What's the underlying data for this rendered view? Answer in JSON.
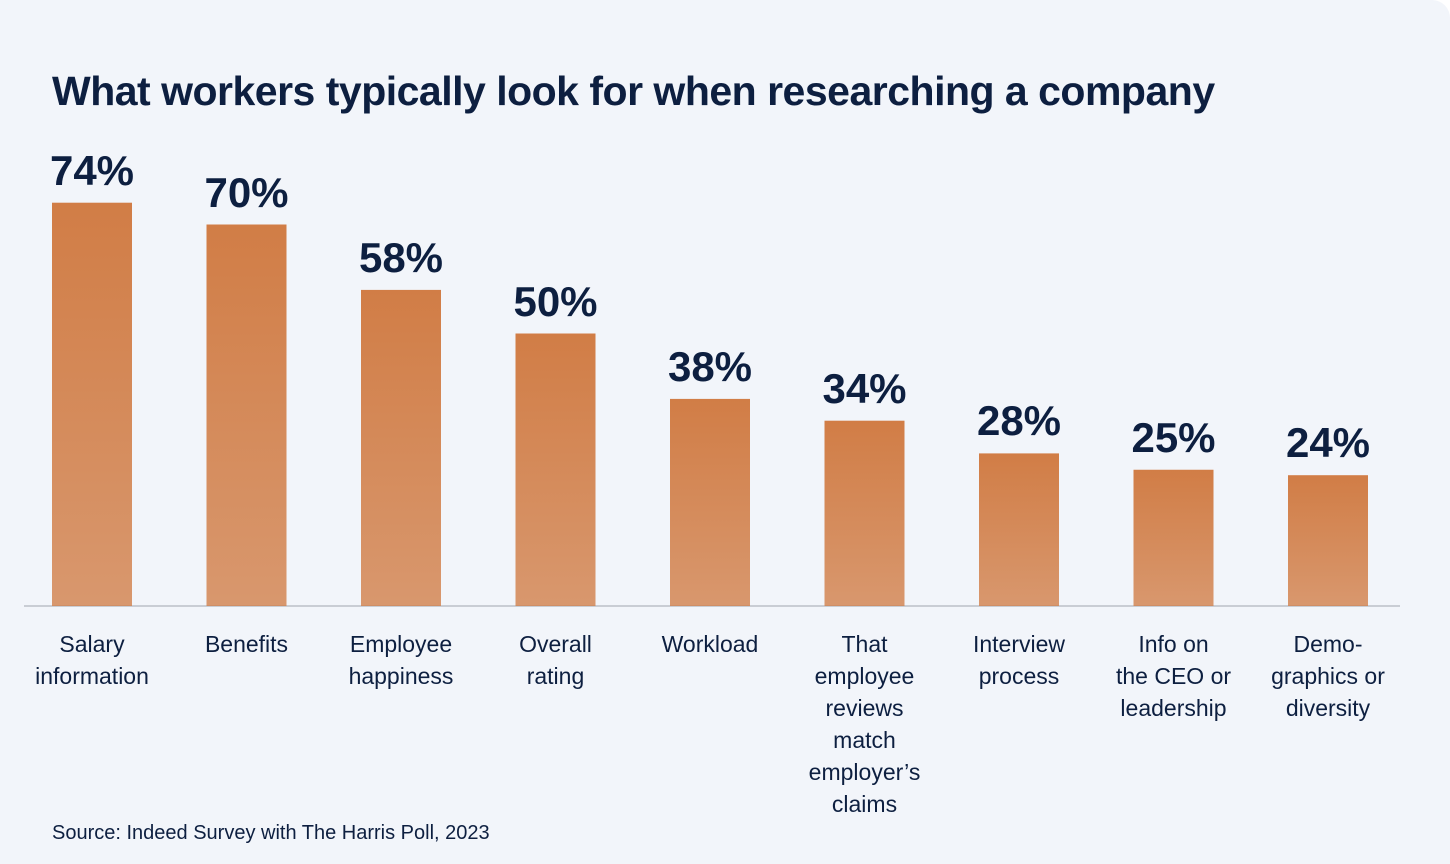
{
  "chart_data": {
    "type": "bar",
    "title": "What workers typically look for when researching a company",
    "categories": [
      "Salary\ninformation",
      "Benefits",
      "Employee\nhappiness",
      "Overall\nrating",
      "Workload",
      "That\nemployee\nreviews\nmatch\nemployer’s\nclaims",
      "Interview\nprocess",
      "Info on\nthe CEO or\nleadership",
      "Demo-\ngraphics or\ndiversity"
    ],
    "values": [
      74,
      70,
      58,
      50,
      38,
      34,
      28,
      25,
      24
    ],
    "value_labels": [
      "74%",
      "70%",
      "58%",
      "50%",
      "38%",
      "34%",
      "28%",
      "25%",
      "24%"
    ],
    "color": "#d17d46",
    "ylim": [
      0,
      100
    ],
    "source": "Source: Indeed Survey with The Harris Poll, 2023"
  }
}
